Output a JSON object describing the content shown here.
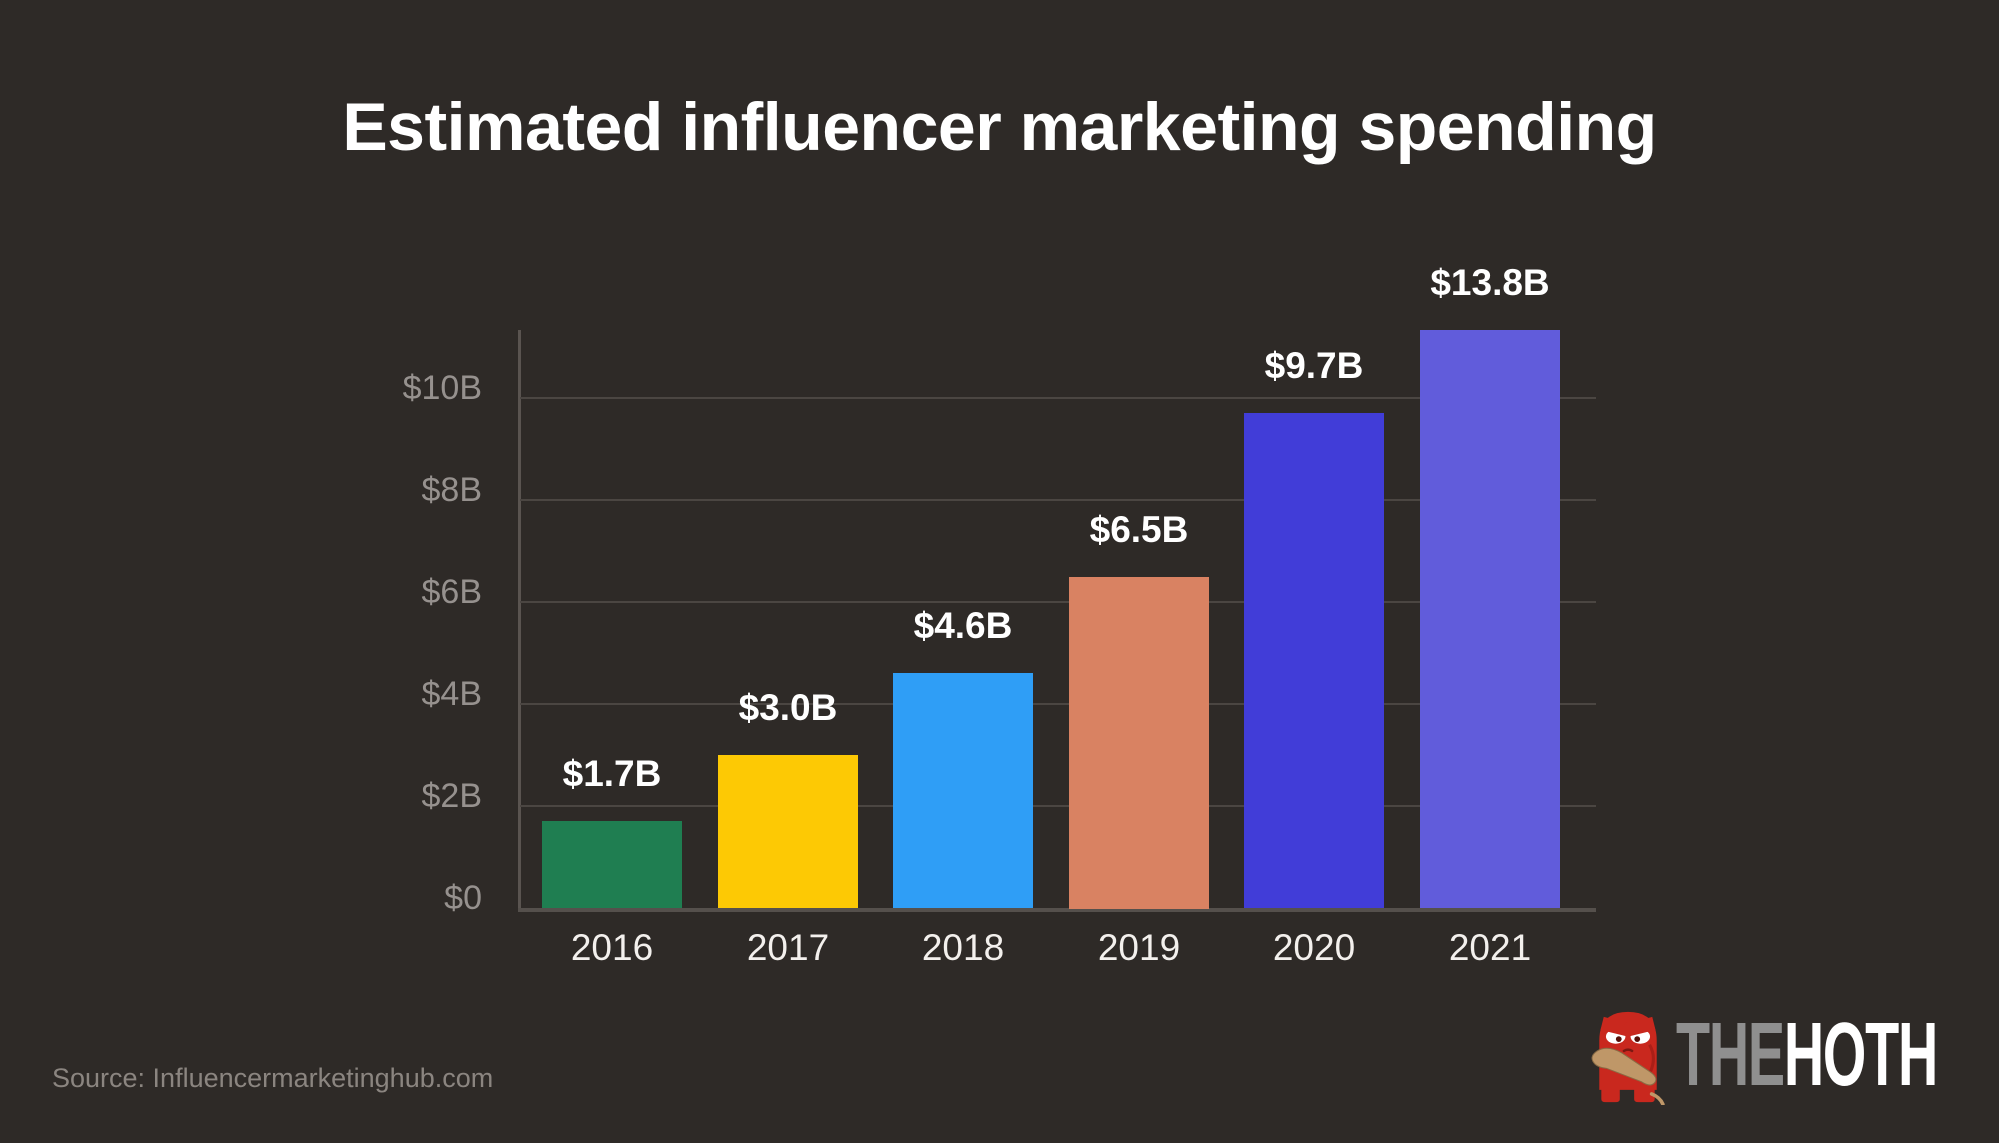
{
  "title": "Estimated influencer marketing spending",
  "source": "Source: Influencermarketinghub.com",
  "logo": {
    "the": "THE",
    "hoth": "HOTH",
    "mascot": "hoth-caveman-mascot",
    "the_color": "#8f8f8f",
    "hoth_color": "#ffffff",
    "mascot_red": "#c9281e",
    "club_tan": "#bf9768"
  },
  "colors": {
    "background": "#2e2a27",
    "title": "#ffffff",
    "gridline": "#4b4642",
    "axis": "#5a5450",
    "y_label": "#96918e",
    "x_label": "#f3f0ed",
    "value_label": "#ffffff",
    "source": "#8b8580"
  },
  "chart_data": {
    "type": "bar",
    "title": "Estimated influencer marketing spending",
    "categories": [
      "2016",
      "2017",
      "2018",
      "2019",
      "2020",
      "2021"
    ],
    "values": [
      1.7,
      3.0,
      4.6,
      6.5,
      9.7,
      13.8
    ],
    "value_labels": [
      "$1.7B",
      "$3.0B",
      "$4.6B",
      "$6.5B",
      "$9.7B",
      "$13.8B"
    ],
    "bar_colors": [
      "#1f7e51",
      "#fdc904",
      "#2f9ef6",
      "#d98262",
      "#413dd8",
      "#615cdb"
    ],
    "unit": "billions of USD",
    "xlabel": "",
    "ylabel": "",
    "ytick_labels": [
      "$0",
      "$2B",
      "$4B",
      "$6B",
      "$8B",
      "$10B"
    ],
    "ytick_values": [
      0,
      2,
      4,
      6,
      8,
      10
    ],
    "ylim": [
      0,
      11.33
    ],
    "grid": "horizontal",
    "legend": "none"
  }
}
